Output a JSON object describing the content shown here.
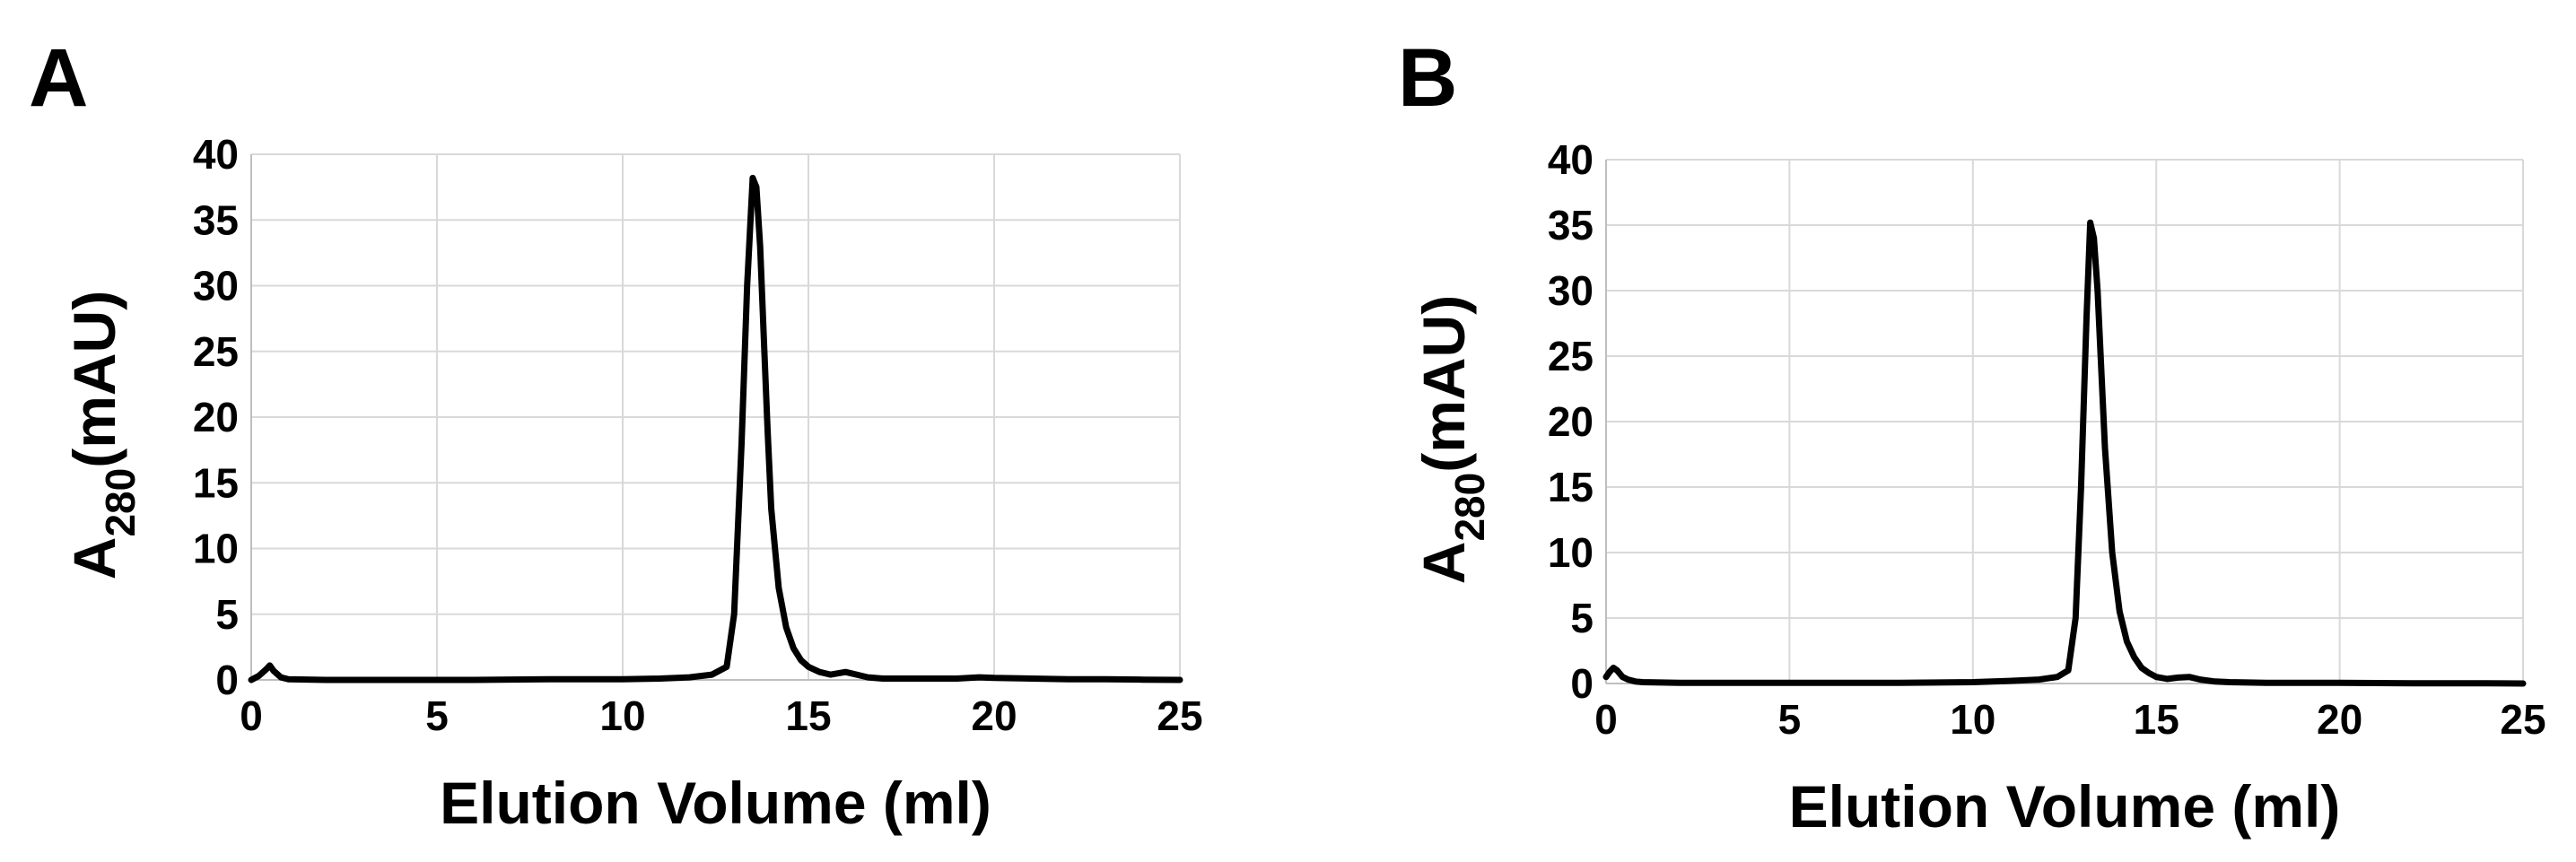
{
  "chart_data": [
    {
      "panel": "A",
      "type": "line",
      "xlabel": "Elution Volume (ml)",
      "ylabel": "A",
      "ylabel_sub": "280",
      "ylabel_suffix": "(mAU)",
      "xlim": [
        0,
        25
      ],
      "ylim": [
        0,
        40
      ],
      "xticks": [
        0,
        5,
        10,
        15,
        20,
        25
      ],
      "yticks": [
        0,
        5,
        10,
        15,
        20,
        25,
        30,
        35,
        40
      ],
      "grid": true,
      "legend": "none",
      "series": [
        {
          "x": [
            0,
            0.2,
            0.4,
            0.5,
            0.6,
            0.8,
            1.0,
            2,
            4,
            6,
            8,
            10,
            11,
            11.8,
            12.4,
            12.8,
            13.0,
            13.2,
            13.35,
            13.5,
            13.6,
            13.7,
            13.8,
            13.9,
            14.0,
            14.2,
            14.4,
            14.6,
            14.8,
            15.0,
            15.3,
            15.6,
            16.0,
            16.3,
            16.6,
            17,
            18,
            19,
            19.6,
            20,
            21,
            22,
            23,
            24,
            25
          ],
          "y": [
            0,
            0.3,
            0.8,
            1.1,
            0.7,
            0.2,
            0.05,
            0,
            0,
            0,
            0.05,
            0.05,
            0.1,
            0.2,
            0.4,
            1.0,
            5,
            18,
            30,
            38.2,
            37.5,
            33,
            26,
            19,
            13,
            7,
            4,
            2.4,
            1.5,
            1.0,
            0.6,
            0.4,
            0.6,
            0.4,
            0.2,
            0.1,
            0.1,
            0.1,
            0.2,
            0.15,
            0.1,
            0.05,
            0.05,
            0.02,
            0
          ]
        }
      ]
    },
    {
      "panel": "B",
      "type": "line",
      "xlabel": "Elution Volume (ml)",
      "ylabel": "A",
      "ylabel_sub": "280",
      "ylabel_suffix": "(mAU)",
      "xlim": [
        0,
        25
      ],
      "ylim": [
        0,
        40
      ],
      "xticks": [
        0,
        5,
        10,
        15,
        20,
        25
      ],
      "yticks": [
        0,
        5,
        10,
        15,
        20,
        25,
        30,
        35,
        40
      ],
      "grid": true,
      "legend": "none",
      "series": [
        {
          "x": [
            0,
            0.1,
            0.2,
            0.3,
            0.45,
            0.6,
            0.8,
            1.0,
            2,
            4,
            6,
            8,
            10,
            11,
            11.8,
            12.3,
            12.6,
            12.8,
            12.95,
            13.1,
            13.2,
            13.3,
            13.4,
            13.5,
            13.6,
            13.8,
            14.0,
            14.2,
            14.4,
            14.6,
            14.8,
            15.0,
            15.3,
            15.6,
            15.9,
            16.2,
            16.6,
            17,
            18,
            20,
            22,
            24,
            25
          ],
          "y": [
            0.5,
            0.9,
            1.2,
            1.0,
            0.5,
            0.3,
            0.15,
            0.1,
            0.05,
            0.05,
            0.05,
            0.05,
            0.1,
            0.2,
            0.3,
            0.5,
            1.0,
            5,
            15,
            28,
            35.2,
            34,
            30,
            24,
            18,
            10,
            5.5,
            3.2,
            2.0,
            1.2,
            0.8,
            0.5,
            0.35,
            0.45,
            0.5,
            0.3,
            0.15,
            0.1,
            0.05,
            0.05,
            0.02,
            0.02,
            0
          ]
        }
      ]
    }
  ]
}
